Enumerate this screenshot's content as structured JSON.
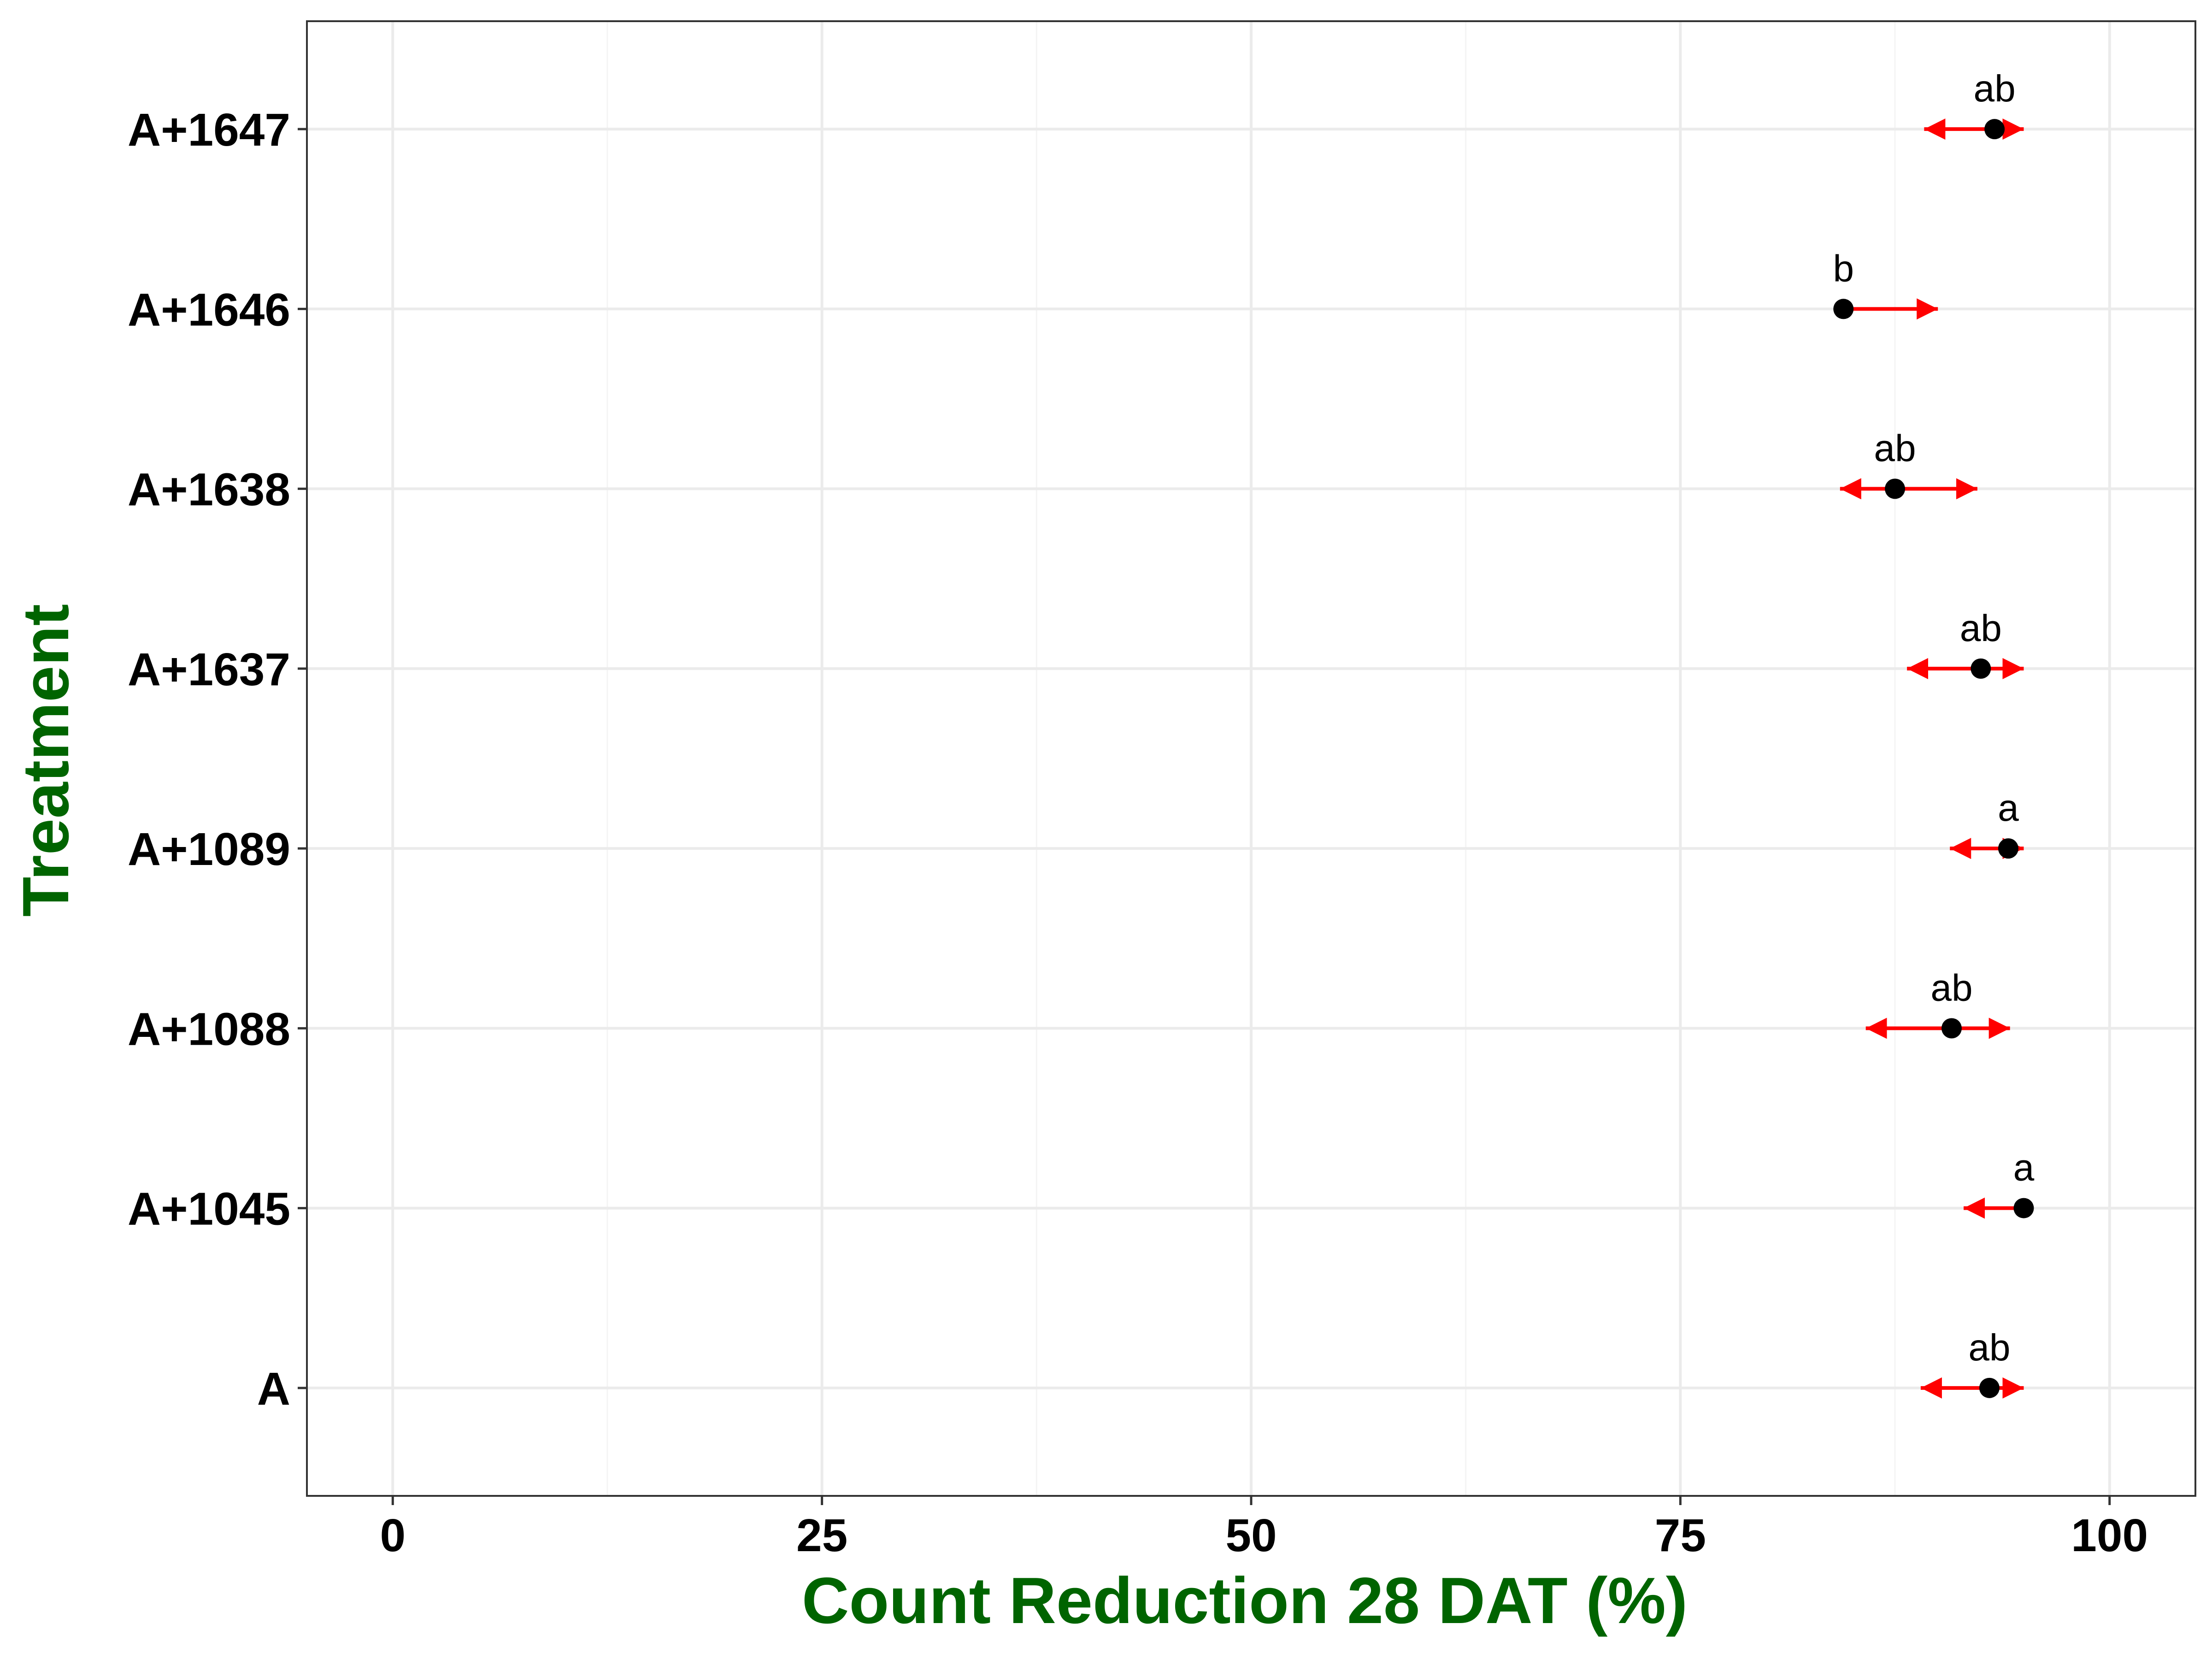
{
  "chart_data": {
    "type": "scatter",
    "xlabel": "Count Reduction 28 DAT (%)",
    "ylabel": "Treatment",
    "xlim": [
      -5,
      105
    ],
    "x_ticks": [
      "0",
      "25",
      "50",
      "75",
      "100"
    ],
    "x_minor_ticks": [
      12.5,
      37.5,
      62.5,
      87.5
    ],
    "grid": true,
    "legend": "none",
    "categories": [
      "A",
      "A+1045",
      "A+1088",
      "A+1089",
      "A+1637",
      "A+1638",
      "A+1646",
      "A+1647"
    ],
    "points": [
      {
        "treatment": "A",
        "estimate": 93.0,
        "lower": 89.0,
        "upper": 95.0,
        "group": "ab"
      },
      {
        "treatment": "A+1045",
        "estimate": 95.0,
        "lower": 91.5,
        "upper": 95.0,
        "group": "a"
      },
      {
        "treatment": "A+1088",
        "estimate": 90.8,
        "lower": 85.8,
        "upper": 94.2,
        "group": "ab"
      },
      {
        "treatment": "A+1089",
        "estimate": 94.1,
        "lower": 90.7,
        "upper": 95.0,
        "group": "a"
      },
      {
        "treatment": "A+1637",
        "estimate": 92.5,
        "lower": 88.2,
        "upper": 95.0,
        "group": "ab"
      },
      {
        "treatment": "A+1638",
        "estimate": 87.5,
        "lower": 84.3,
        "upper": 92.3,
        "group": "ab"
      },
      {
        "treatment": "A+1646",
        "estimate": 84.5,
        "lower": 84.5,
        "upper": 90.0,
        "group": "b"
      },
      {
        "treatment": "A+1647",
        "estimate": 93.3,
        "lower": 89.2,
        "upper": 95.0,
        "group": "ab"
      }
    ]
  },
  "colors": {
    "axis_title": "#006400",
    "interval": "#ff0000",
    "point": "#000000",
    "grid_major": "#ebebeb",
    "grid_minor": "#f4f4f4",
    "panel_border": "#333333"
  }
}
